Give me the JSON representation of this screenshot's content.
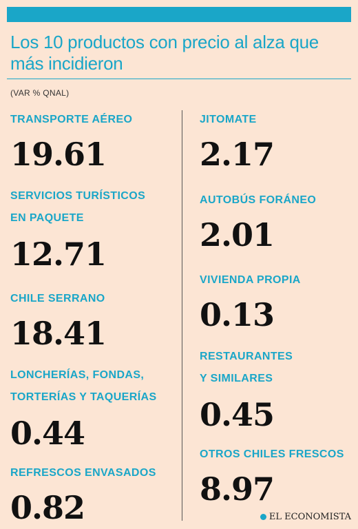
{
  "header": {
    "title": "Los 10 productos con precio al alza que más incidieron",
    "subtitle": "(VAR % QNAL)"
  },
  "brand": {
    "name": "EL ECONOMISTA"
  },
  "colors": {
    "accent": "#1aa6c8",
    "background": "#fce5d4",
    "text": "#111111"
  },
  "chart_data": {
    "type": "table",
    "title": "Los 10 productos con precio al alza que más incidieron",
    "subtitle": "(VAR % QNAL)",
    "items": [
      {
        "label": "TRANSPORTE AÉREO",
        "value": "19.61"
      },
      {
        "label": "SERVICIOS TURÍSTICOS\nEN PAQUETE",
        "value": "12.71"
      },
      {
        "label": "CHILE SERRANO",
        "value": "18.41"
      },
      {
        "label": "LONCHERÍAS, FONDAS,\nTORTERÍAS Y TAQUERÍAS",
        "value": "0.44"
      },
      {
        "label": "REFRESCOS ENVASADOS",
        "value": "0.82"
      },
      {
        "label": "JITOMATE",
        "value": "2.17"
      },
      {
        "label": "AUTOBÚS FORÁNEO",
        "value": "2.01"
      },
      {
        "label": "VIVIENDA PROPIA",
        "value": "0.13"
      },
      {
        "label": "RESTAURANTES\nY SIMILARES",
        "value": "0.45"
      },
      {
        "label": "OTROS CHILES FRESCOS",
        "value": "8.97"
      }
    ]
  }
}
